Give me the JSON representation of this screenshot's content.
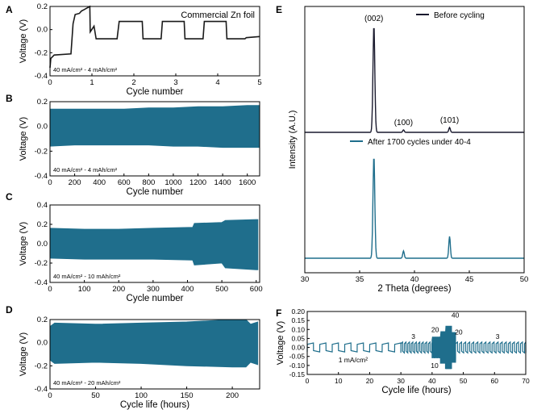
{
  "chart_data": [
    {
      "panel_label": "A",
      "type": "line",
      "title": "Commercial Zn foil",
      "annotation": "40 mA/cm² - 4 mAh/cm²",
      "xlabel": "Cycle number",
      "ylabel": "Voltage (V)",
      "xlim": [
        0,
        5
      ],
      "ylim": [
        -0.4,
        0.2
      ],
      "xticks": [
        0,
        1,
        2,
        3,
        4,
        5
      ],
      "yticks": [
        -0.4,
        -0.2,
        0.0,
        0.2
      ],
      "ytick_labels": [
        "-0.4",
        "-0.2",
        "0.0",
        "0.2"
      ],
      "color": "#1a1a1a",
      "x": [
        0,
        0.02,
        0.1,
        0.5,
        0.55,
        0.6,
        0.7,
        0.75,
        0.8,
        0.9,
        0.95,
        0.96,
        1.05,
        1.1,
        1.2,
        1.6,
        1.65,
        2.2,
        2.22,
        2.65,
        2.68,
        3.2,
        3.22,
        3.65,
        3.68,
        4.2,
        4.22,
        4.65,
        4.68,
        5.0
      ],
      "y": [
        -0.33,
        -0.25,
        -0.22,
        -0.21,
        0.05,
        0.13,
        0.14,
        0.16,
        0.17,
        0.19,
        0.2,
        -0.02,
        0.03,
        -0.08,
        -0.08,
        -0.08,
        0.07,
        0.07,
        -0.08,
        -0.08,
        0.07,
        0.07,
        -0.08,
        -0.08,
        0.07,
        0.07,
        -0.08,
        -0.08,
        -0.07,
        -0.06
      ]
    },
    {
      "panel_label": "B",
      "type": "area",
      "annotation": "40 mA/cm² - 4 mAh/cm²",
      "xlabel": "Cycle number",
      "ylabel": "Voltage (V)",
      "xlim": [
        0,
        1700
      ],
      "ylim": [
        -0.4,
        0.2
      ],
      "xticks": [
        0,
        200,
        400,
        600,
        800,
        1000,
        1200,
        1400,
        1600
      ],
      "yticks": [
        -0.4,
        -0.2,
        0.0,
        0.2
      ],
      "ytick_labels": [
        "-0.4",
        "-0.2",
        "0.0",
        "0.2"
      ],
      "color": "#1f6e8c",
      "x": [
        0,
        200,
        400,
        600,
        800,
        1000,
        1200,
        1400,
        1600,
        1700
      ],
      "upper": [
        0.14,
        0.14,
        0.14,
        0.14,
        0.15,
        0.15,
        0.16,
        0.16,
        0.17,
        0.17
      ],
      "lower": [
        -0.16,
        -0.15,
        -0.15,
        -0.15,
        -0.15,
        -0.16,
        -0.16,
        -0.17,
        -0.17,
        -0.17
      ]
    },
    {
      "panel_label": "C",
      "type": "area",
      "annotation": "40 mA/cm² - 10 mAh/cm²",
      "xlabel": "Cycle number",
      "ylabel": "Voltage (V)",
      "xlim": [
        0,
        610
      ],
      "ylim": [
        -0.4,
        0.4
      ],
      "xticks": [
        0,
        100,
        200,
        300,
        400,
        500,
        600
      ],
      "yticks": [
        -0.4,
        -0.2,
        0.0,
        0.2,
        0.4
      ],
      "ytick_labels": [
        "-0.4",
        "-0.2",
        "0.0",
        "0.2",
        "0.4"
      ],
      "color": "#1f6e8c",
      "x": [
        0,
        100,
        200,
        300,
        415,
        420,
        500,
        510,
        600,
        605
      ],
      "upper": [
        0.16,
        0.15,
        0.15,
        0.16,
        0.17,
        0.21,
        0.22,
        0.24,
        0.25,
        0.25
      ],
      "lower": [
        -0.15,
        -0.16,
        -0.16,
        -0.16,
        -0.17,
        -0.22,
        -0.2,
        -0.25,
        -0.27,
        -0.27
      ]
    },
    {
      "panel_label": "D",
      "type": "area",
      "annotation": "40 mA/cm² - 20 mAh/cm²",
      "xlabel": "Cycle life (hours)",
      "ylabel": "Voltage (V)",
      "xlim": [
        0,
        230
      ],
      "ylim": [
        -0.4,
        0.2
      ],
      "xticks": [
        0,
        50,
        100,
        150,
        200
      ],
      "yticks": [
        -0.4,
        -0.2,
        0.0,
        0.2
      ],
      "ytick_labels": [
        "-0.4",
        "-0.2",
        "0.0",
        "0.2"
      ],
      "color": "#1f6e8c",
      "x": [
        0,
        5,
        50,
        100,
        150,
        200,
        215,
        220,
        228
      ],
      "upper": [
        0.14,
        0.17,
        0.16,
        0.17,
        0.18,
        0.2,
        0.2,
        0.16,
        0.18
      ],
      "lower": [
        -0.15,
        -0.18,
        -0.17,
        -0.18,
        -0.2,
        -0.21,
        -0.21,
        -0.17,
        -0.19
      ]
    },
    {
      "panel_label": "E",
      "type": "line",
      "xlabel": "2 Theta (degrees)",
      "ylabel": "Intensity (A.U.)",
      "xlim": [
        30,
        50
      ],
      "xticks": [
        30,
        35,
        40,
        45,
        50
      ],
      "series": [
        {
          "name": "Before cycling",
          "color": "#1a1a2e",
          "baseline": 0.52,
          "peaks": [
            {
              "x": 36.3,
              "h": 0.44,
              "w": 0.12,
              "label": "(002)"
            },
            {
              "x": 39.0,
              "h": 0.01,
              "w": 0.1,
              "label": "(100)"
            },
            {
              "x": 43.2,
              "h": 0.02,
              "w": 0.1,
              "label": "(101)"
            }
          ]
        },
        {
          "name": "After 1700 cycles under 40-4",
          "color": "#1f6e8c",
          "baseline": 0.0,
          "peaks": [
            {
              "x": 36.3,
              "h": 0.42,
              "w": 0.12
            },
            {
              "x": 39.0,
              "h": 0.03,
              "w": 0.1
            },
            {
              "x": 43.2,
              "h": 0.09,
              "w": 0.1
            }
          ]
        }
      ]
    },
    {
      "panel_label": "F",
      "type": "line",
      "xlabel": "Cycle life (hours)",
      "ylabel": "Voltage (V)",
      "xlim": [
        0,
        70
      ],
      "ylim": [
        -0.15,
        0.2
      ],
      "xticks": [
        0,
        10,
        20,
        30,
        40,
        50,
        60,
        70
      ],
      "yticks": [
        -0.15,
        -0.1,
        -0.05,
        0.0,
        0.05,
        0.1,
        0.15,
        0.2
      ],
      "ytick_labels": [
        "-0.15",
        "-0.10",
        "-0.05",
        "0.00",
        "0.05",
        "0.10",
        "0.15",
        "0.20"
      ],
      "color": "#1f6e8c",
      "segments": [
        {
          "x0": 0,
          "x1": 30,
          "period": 4,
          "amp": 0.025,
          "label": "1 mA/cm²"
        },
        {
          "x0": 30,
          "x1": 40,
          "period": 1.1,
          "amp": 0.03,
          "label": "3"
        },
        {
          "x0": 40,
          "x1": 42.7,
          "period": 0.35,
          "amp": 0.06,
          "label": "10"
        },
        {
          "x0": 42.7,
          "x1": 44.3,
          "period": 0.3,
          "amp": 0.09,
          "label": "20"
        },
        {
          "x0": 44.3,
          "x1": 46.2,
          "period": 0.3,
          "amp": 0.12,
          "label": "40"
        },
        {
          "x0": 46.2,
          "x1": 47.5,
          "period": 0.3,
          "amp": 0.085,
          "label": "20"
        },
        {
          "x0": 47.5,
          "x1": 70,
          "period": 1.3,
          "amp": 0.03,
          "label": "3"
        }
      ]
    }
  ]
}
